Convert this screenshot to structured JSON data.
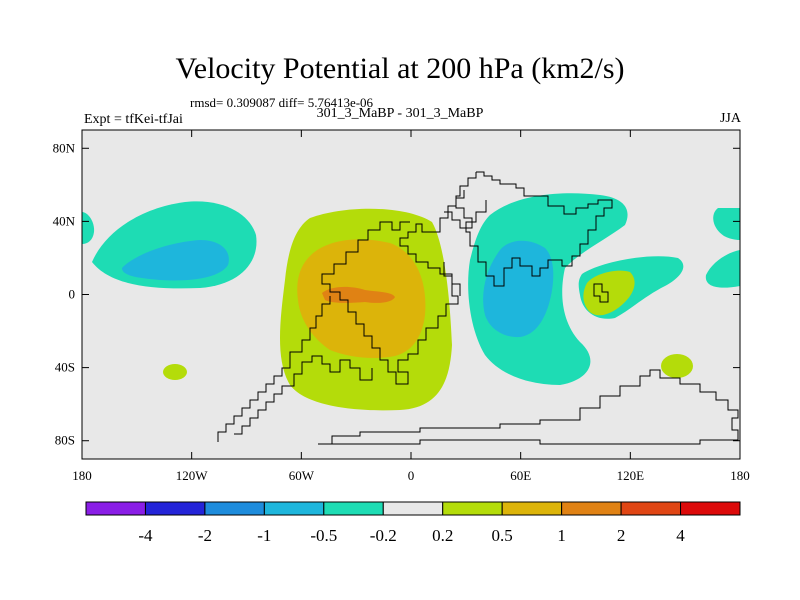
{
  "title": "Velocity Potential at 200 hPa (km2/s)",
  "stats": "rmsd= 0.309087 diff= 5.76413e-06",
  "expt_label": "Expt = tfKei-tfJai",
  "subtitle": "301_3_MaBP - 301_3_MaBP",
  "season": "JJA",
  "chart_data": {
    "type": "heatmap",
    "projection": "cylindrical equidistant",
    "x_range": [
      -180,
      180
    ],
    "y_range": [
      -90,
      90
    ],
    "x_ticks": [
      {
        "value": -180,
        "label": "180"
      },
      {
        "value": -120,
        "label": "120W"
      },
      {
        "value": -60,
        "label": "60W"
      },
      {
        "value": 0,
        "label": "0"
      },
      {
        "value": 60,
        "label": "60E"
      },
      {
        "value": 120,
        "label": "120E"
      },
      {
        "value": 180,
        "label": "180"
      }
    ],
    "y_ticks": [
      {
        "value": 80,
        "label": "80N"
      },
      {
        "value": 40,
        "label": "40N"
      },
      {
        "value": 0,
        "label": "0"
      },
      {
        "value": -40,
        "label": "40S"
      },
      {
        "value": -80,
        "label": "80S"
      }
    ],
    "contour_levels": [
      -4,
      -2,
      -1,
      -0.5,
      -0.2,
      0.2,
      0.5,
      1,
      2,
      4
    ],
    "level_labels": [
      "-4",
      "-2",
      "-1",
      "-0.5",
      "-0.2",
      "0.2",
      "0.5",
      "1",
      "2",
      "4"
    ],
    "colors": [
      "#8a1ee6",
      "#2424d8",
      "#1e8cdc",
      "#1eb6dc",
      "#1edcb4",
      "#e8e8e8",
      "#b4dc0a",
      "#dcb40a",
      "#e08214",
      "#e04614",
      "#dc0a0a"
    ],
    "features": [
      {
        "name": "positive maximum",
        "lon": -35,
        "lat": 2,
        "value": "1 to 2"
      },
      {
        "name": "negative minimum",
        "lon": 55,
        "lat": 5,
        "value": "-0.5 to -1"
      },
      {
        "name": "negative band",
        "lon": -125,
        "lat": 18,
        "value": "-0.2 to -1"
      }
    ]
  }
}
